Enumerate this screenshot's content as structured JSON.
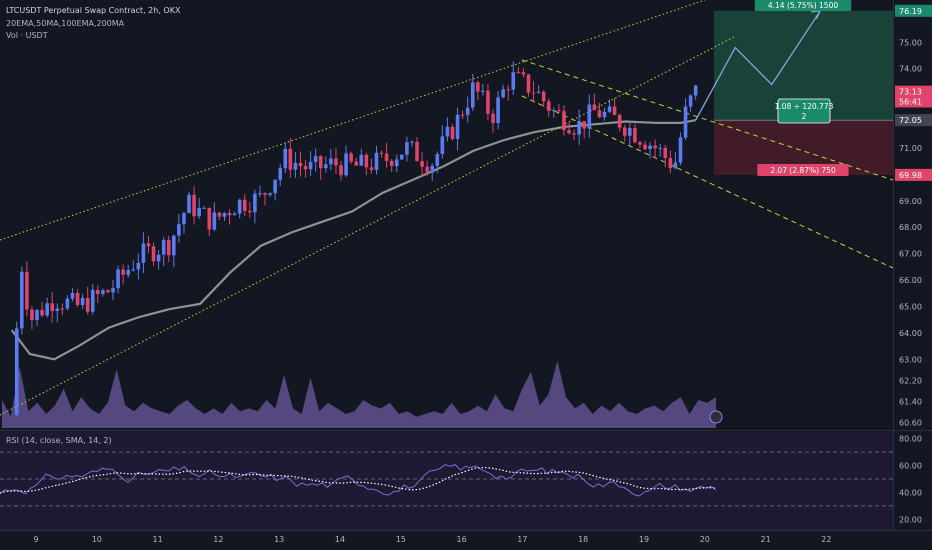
{
  "header": {
    "symbol_line": "LTCUSDT Perpetual Swap Contract, 2h, OKX",
    "ma_line": "20EMA,50MA,100EMA,200MA",
    "vol_line": "Vol · USDT",
    "rsi_line": "RSI (14, close, SMA, 14, 2)"
  },
  "colors": {
    "background": "#131722",
    "up": "#5b7cf0",
    "down": "#e0446a",
    "ma_line": "#9e9e9e",
    "channel": "#c6d532",
    "profit_zone": "#1b4a3c",
    "loss_zone": "#4a1c28",
    "volume": "#6b5a9e",
    "rsi_line": "#7e6bd6",
    "rsi_bg": "#1e1a33"
  },
  "chart_data": [
    {
      "type": "candlestick",
      "title": "LTCUSDT Perpetual Swap Contract, 2h, OKX",
      "x_ticks": [
        "9",
        "10",
        "11",
        "12",
        "13",
        "14",
        "15",
        "16",
        "17",
        "18",
        "19",
        "20",
        "21",
        "22"
      ],
      "y_ticks": [
        "60.60",
        "61.40",
        "62.20",
        "63.00",
        "64.00",
        "65.00",
        "66.00",
        "67.00",
        "68.00",
        "69.00",
        "70.00",
        "71.00",
        "72.00",
        "73.00",
        "74.00",
        "75.00"
      ],
      "ylim": [
        60.4,
        76.6
      ],
      "axis_labels": [
        {
          "text": "76.19",
          "value": 76.19,
          "color": "#1b8a6b"
        },
        {
          "text": "73.13",
          "value": 73.13,
          "color": "#e0446a"
        },
        {
          "text": "56:41",
          "value": 72.76,
          "color": "#e0446a"
        },
        {
          "text": "72.05",
          "value": 72.05,
          "color": "#434651"
        },
        {
          "text": "69.98",
          "value": 69.98,
          "color": "#e0446a"
        }
      ],
      "moving_average": {
        "x": [
          8.6,
          8.9,
          9.3,
          9.7,
          10.2,
          10.7,
          11.2,
          11.7,
          12.2,
          12.7,
          13.2,
          13.7,
          14.2,
          14.7,
          15.2,
          15.7,
          16.2,
          16.7,
          17.2,
          17.7,
          18.2,
          18.7,
          19.2,
          19.6,
          19.85
        ],
        "y": [
          64.1,
          63.2,
          63.0,
          63.5,
          64.2,
          64.6,
          64.9,
          65.1,
          66.3,
          67.3,
          67.8,
          68.2,
          68.6,
          69.3,
          69.8,
          70.3,
          70.9,
          71.3,
          71.6,
          71.8,
          71.9,
          72.0,
          71.95,
          71.95,
          72.05
        ]
      },
      "candles_summary": "2h candles from Jan 8 to Jan 20; price rises from ~61 to ~74, consolidates in a falling channel, last close 73.13",
      "channel_lines": "ascending dotted channel and descending dashed channel",
      "position": {
        "entry": 72.05,
        "target": 76.19,
        "stop": 69.98,
        "target_label": "4.14 (5.75%) 1500",
        "stop_label": "2.07 (2.87%) 750",
        "ratio_label_1": "1.08 ÷ 120.773",
        "ratio_label_2": "2"
      },
      "projection_path": {
        "x": [
          19.85,
          20.5,
          21.1,
          21.9
        ],
        "y": [
          72.05,
          74.8,
          73.4,
          76.19
        ]
      }
    },
    {
      "type": "area",
      "title": "Vol · USDT",
      "series": [
        {
          "name": "Volume",
          "values": [
            1.0,
            0.4,
            2.2,
            0.6,
            0.9,
            0.5,
            0.8,
            1.4,
            0.6,
            1.1,
            0.7,
            0.5,
            0.9,
            2.1,
            0.8,
            0.6,
            0.9,
            0.7,
            0.6,
            0.5,
            0.8,
            1.0,
            0.7,
            0.5,
            0.7,
            0.5,
            0.9,
            0.6,
            0.7,
            0.6,
            1.0,
            0.7,
            1.9,
            0.7,
            0.5,
            1.8,
            0.6,
            0.9,
            0.7,
            0.5,
            0.6,
            1.0,
            0.8,
            0.7,
            0.9,
            0.5,
            0.6,
            0.4,
            0.5,
            0.6,
            0.5,
            0.9,
            0.5,
            0.6,
            0.8,
            0.6,
            1.2,
            0.7,
            0.6,
            1.4,
            2.0,
            0.8,
            1.2,
            2.4,
            1.1,
            0.7,
            0.9,
            0.5,
            0.8,
            0.6,
            0.9,
            0.6,
            0.5,
            0.7,
            0.8,
            0.6,
            0.9,
            1.1,
            0.5,
            1.0,
            0.9,
            1.1
          ]
        }
      ]
    },
    {
      "type": "line",
      "title": "RSI (14, close, SMA, 14, 2)",
      "y_ticks": [
        "20.00",
        "40.00",
        "60.00",
        "80.00"
      ],
      "ylim": [
        15,
        82
      ],
      "bands": [
        30,
        50,
        70
      ]
    }
  ]
}
